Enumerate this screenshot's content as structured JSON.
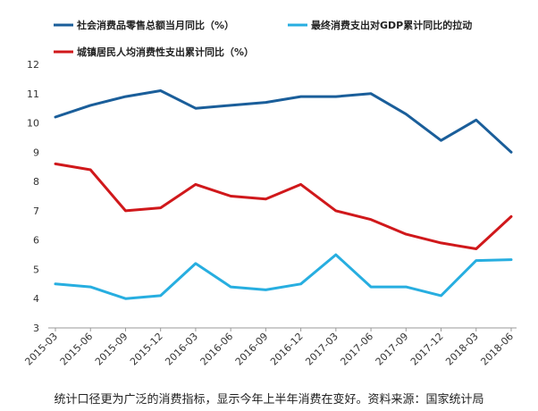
{
  "caption": "统计口径更为广泛的消费指标，显示今年上半年消费在变好。资料来源：国家统计局",
  "chart_data": {
    "type": "line",
    "x": [
      "2015-03",
      "2015-06",
      "2015-09",
      "2015-12",
      "2016-03",
      "2016-06",
      "2016-09",
      "2016-12",
      "2017-03",
      "2017-06",
      "2017-09",
      "2017-12",
      "2018-03",
      "2018-06"
    ],
    "ylim": [
      3,
      12
    ],
    "yticks": [
      3,
      4,
      5,
      6,
      7,
      8,
      9,
      10,
      11,
      12
    ],
    "grid": false,
    "legend_position": "top",
    "series": [
      {
        "name": "社会消费品零售总额当月同比（%）",
        "color": "#1a5e9a",
        "values": [
          10.2,
          10.6,
          10.9,
          11.1,
          10.5,
          10.6,
          10.7,
          10.9,
          10.9,
          11.0,
          10.3,
          9.4,
          10.1,
          9.0
        ]
      },
      {
        "name": "最终消费支出对GDP累计同比的拉动",
        "color": "#27aee0",
        "values": [
          4.5,
          4.4,
          4.0,
          4.1,
          5.2,
          4.4,
          4.3,
          4.5,
          5.5,
          4.4,
          4.4,
          4.1,
          5.3,
          5.33
        ]
      },
      {
        "name": "城镇居民人均消费性支出累计同比（%）",
        "color": "#d0181b",
        "values": [
          8.6,
          8.4,
          7.0,
          7.1,
          7.9,
          7.5,
          7.4,
          7.9,
          7.0,
          6.7,
          6.2,
          5.9,
          5.7,
          6.8
        ]
      }
    ]
  }
}
